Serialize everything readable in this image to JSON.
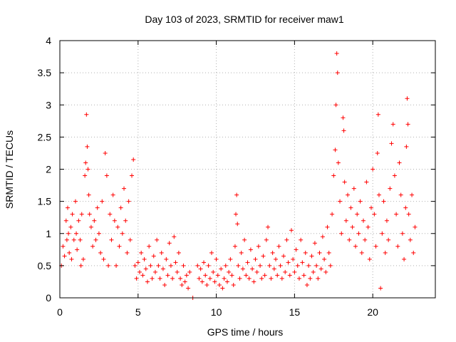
{
  "chart_data": {
    "type": "scatter",
    "title": "Day 103 of 2023, SRMTID for receiver maw1",
    "xlabel": "GPS time / hours",
    "ylabel": "SRMTID / TECUs",
    "xlim": [
      0,
      24
    ],
    "ylim": [
      0,
      4
    ],
    "xticks": [
      0,
      5,
      10,
      15,
      20
    ],
    "yticks": [
      0,
      0.5,
      1,
      1.5,
      2,
      2.5,
      3,
      3.5,
      4
    ],
    "xtick_labels": [
      "0",
      "5",
      "10",
      "15",
      "20"
    ],
    "ytick_labels": [
      "0",
      "0.5",
      "1",
      "1.5",
      "2",
      "2.5",
      "3",
      "3.5",
      "4"
    ],
    "grid": true,
    "marker": "plus",
    "series": [
      {
        "name": "maw1",
        "color": "#ff0000",
        "points": [
          [
            0.1,
            0.5
          ],
          [
            0.2,
            0.8
          ],
          [
            0.3,
            0.65
          ],
          [
            0.4,
            1.2
          ],
          [
            0.45,
            0.9
          ],
          [
            0.5,
            1.4
          ],
          [
            0.55,
            1.0
          ],
          [
            0.6,
            0.7
          ],
          [
            0.7,
            1.1
          ],
          [
            0.75,
            0.6
          ],
          [
            0.8,
            1.3
          ],
          [
            0.9,
            0.9
          ],
          [
            1.0,
            1.5
          ],
          [
            1.05,
            1.0
          ],
          [
            1.1,
            0.75
          ],
          [
            1.2,
            1.2
          ],
          [
            1.3,
            0.9
          ],
          [
            1.35,
            0.5
          ],
          [
            1.4,
            1.3
          ],
          [
            1.5,
            0.6
          ],
          [
            1.6,
            1.9
          ],
          [
            1.65,
            2.1
          ],
          [
            1.7,
            2.85
          ],
          [
            1.75,
            2.35
          ],
          [
            1.8,
            2.0
          ],
          [
            1.85,
            1.6
          ],
          [
            1.9,
            1.3
          ],
          [
            2.0,
            1.1
          ],
          [
            2.1,
            0.8
          ],
          [
            2.2,
            1.2
          ],
          [
            2.3,
            0.9
          ],
          [
            2.4,
            1.4
          ],
          [
            2.5,
            1.0
          ],
          [
            2.6,
            0.7
          ],
          [
            2.7,
            1.5
          ],
          [
            2.8,
            0.6
          ],
          [
            2.9,
            2.25
          ],
          [
            3.0,
            1.9
          ],
          [
            3.1,
            0.5
          ],
          [
            3.2,
            1.3
          ],
          [
            3.3,
            0.9
          ],
          [
            3.4,
            1.6
          ],
          [
            3.5,
            1.2
          ],
          [
            3.6,
            0.5
          ],
          [
            3.7,
            1.1
          ],
          [
            3.8,
            0.8
          ],
          [
            3.9,
            1.4
          ],
          [
            4.0,
            1.0
          ],
          [
            4.1,
            1.7
          ],
          [
            4.2,
            1.2
          ],
          [
            4.3,
            0.7
          ],
          [
            4.4,
            1.5
          ],
          [
            4.5,
            0.9
          ],
          [
            4.6,
            1.9
          ],
          [
            4.7,
            2.15
          ],
          [
            4.8,
            0.5
          ],
          [
            4.9,
            0.3
          ],
          [
            5.0,
            0.55
          ],
          [
            5.1,
            0.4
          ],
          [
            5.2,
            0.7
          ],
          [
            5.3,
            0.35
          ],
          [
            5.4,
            0.6
          ],
          [
            5.5,
            0.45
          ],
          [
            5.6,
            0.25
          ],
          [
            5.7,
            0.8
          ],
          [
            5.8,
            0.5
          ],
          [
            5.9,
            0.3
          ],
          [
            6.0,
            0.65
          ],
          [
            6.1,
            0.4
          ],
          [
            6.2,
            0.9
          ],
          [
            6.3,
            0.5
          ],
          [
            6.4,
            0.3
          ],
          [
            6.5,
            0.7
          ],
          [
            6.6,
            0.45
          ],
          [
            6.7,
            0.2
          ],
          [
            6.8,
            0.6
          ],
          [
            6.9,
            0.35
          ],
          [
            7.0,
            0.85
          ],
          [
            7.1,
            0.5
          ],
          [
            7.2,
            0.3
          ],
          [
            7.3,
            0.95
          ],
          [
            7.4,
            0.55
          ],
          [
            7.5,
            0.4
          ],
          [
            7.6,
            0.7
          ],
          [
            7.7,
            0.3
          ],
          [
            7.8,
            0.2
          ],
          [
            7.9,
            0.5
          ],
          [
            8.0,
            0.25
          ],
          [
            8.1,
            0.35
          ],
          [
            8.2,
            0.15
          ],
          [
            8.3,
            0.4
          ],
          [
            8.5,
            0.0
          ],
          [
            8.8,
            0.5
          ],
          [
            8.9,
            0.3
          ],
          [
            9.0,
            0.45
          ],
          [
            9.1,
            0.25
          ],
          [
            9.2,
            0.55
          ],
          [
            9.3,
            0.35
          ],
          [
            9.4,
            0.2
          ],
          [
            9.5,
            0.5
          ],
          [
            9.6,
            0.3
          ],
          [
            9.7,
            0.7
          ],
          [
            9.8,
            0.4
          ],
          [
            9.9,
            0.25
          ],
          [
            10.0,
            0.6
          ],
          [
            10.1,
            0.35
          ],
          [
            10.2,
            0.2
          ],
          [
            10.3,
            0.45
          ],
          [
            10.4,
            0.15
          ],
          [
            10.5,
            0.3
          ],
          [
            10.6,
            0.5
          ],
          [
            10.7,
            0.25
          ],
          [
            10.8,
            0.4
          ],
          [
            10.9,
            0.6
          ],
          [
            11.0,
            0.35
          ],
          [
            11.1,
            0.2
          ],
          [
            11.2,
            0.8
          ],
          [
            11.25,
            1.3
          ],
          [
            11.3,
            1.6
          ],
          [
            11.35,
            1.15
          ],
          [
            11.4,
            0.5
          ],
          [
            11.5,
            0.3
          ],
          [
            11.6,
            0.7
          ],
          [
            11.7,
            0.45
          ],
          [
            11.8,
            0.9
          ],
          [
            11.9,
            0.35
          ],
          [
            12.0,
            0.55
          ],
          [
            12.1,
            0.3
          ],
          [
            12.2,
            0.75
          ],
          [
            12.3,
            0.45
          ],
          [
            12.4,
            0.25
          ],
          [
            12.5,
            0.6
          ],
          [
            12.6,
            0.4
          ],
          [
            12.7,
            0.8
          ],
          [
            12.8,
            0.5
          ],
          [
            12.9,
            0.3
          ],
          [
            13.0,
            0.65
          ],
          [
            13.1,
            0.35
          ],
          [
            13.2,
            0.9
          ],
          [
            13.3,
            1.1
          ],
          [
            13.4,
            0.5
          ],
          [
            13.5,
            0.3
          ],
          [
            13.6,
            0.7
          ],
          [
            13.7,
            0.45
          ],
          [
            13.8,
            0.6
          ],
          [
            13.9,
            0.35
          ],
          [
            14.0,
            0.8
          ],
          [
            14.1,
            0.5
          ],
          [
            14.2,
            0.3
          ],
          [
            14.3,
            0.65
          ],
          [
            14.4,
            0.4
          ],
          [
            14.5,
            0.9
          ],
          [
            14.6,
            0.55
          ],
          [
            14.7,
            0.35
          ],
          [
            14.8,
            1.05
          ],
          [
            14.9,
            0.6
          ],
          [
            15.0,
            0.4
          ],
          [
            15.1,
            0.75
          ],
          [
            15.2,
            0.5
          ],
          [
            15.3,
            0.3
          ],
          [
            15.4,
            0.9
          ],
          [
            15.5,
            0.55
          ],
          [
            15.6,
            0.35
          ],
          [
            15.7,
            0.7
          ],
          [
            15.8,
            0.2
          ],
          [
            15.9,
            0.5
          ],
          [
            16.0,
            0.3
          ],
          [
            16.1,
            0.65
          ],
          [
            16.2,
            0.4
          ],
          [
            16.3,
            0.85
          ],
          [
            16.4,
            0.5
          ],
          [
            16.5,
            0.3
          ],
          [
            16.6,
            0.7
          ],
          [
            16.7,
            0.45
          ],
          [
            16.8,
            0.95
          ],
          [
            16.9,
            0.6
          ],
          [
            17.0,
            0.4
          ],
          [
            17.1,
            1.1
          ],
          [
            17.2,
            0.7
          ],
          [
            17.3,
            0.5
          ],
          [
            17.4,
            1.3
          ],
          [
            17.5,
            1.9
          ],
          [
            17.6,
            2.3
          ],
          [
            17.65,
            3.0
          ],
          [
            17.7,
            3.8
          ],
          [
            17.75,
            3.5
          ],
          [
            17.8,
            2.1
          ],
          [
            17.9,
            1.5
          ],
          [
            18.0,
            1.0
          ],
          [
            18.1,
            2.8
          ],
          [
            18.15,
            2.6
          ],
          [
            18.2,
            1.8
          ],
          [
            18.3,
            1.2
          ],
          [
            18.4,
            1.6
          ],
          [
            18.5,
            0.9
          ],
          [
            18.6,
            1.4
          ],
          [
            18.7,
            1.1
          ],
          [
            18.8,
            1.7
          ],
          [
            18.9,
            0.8
          ],
          [
            19.0,
            1.3
          ],
          [
            19.1,
            1.0
          ],
          [
            19.2,
            1.5
          ],
          [
            19.3,
            0.7
          ],
          [
            19.4,
            1.2
          ],
          [
            19.5,
            0.9
          ],
          [
            19.6,
            1.8
          ],
          [
            19.7,
            1.1
          ],
          [
            19.8,
            0.6
          ],
          [
            19.9,
            1.4
          ],
          [
            20.0,
            2.0
          ],
          [
            20.1,
            1.3
          ],
          [
            20.2,
            0.8
          ],
          [
            20.3,
            2.25
          ],
          [
            20.35,
            2.85
          ],
          [
            20.4,
            1.6
          ],
          [
            20.5,
            0.15
          ],
          [
            20.6,
            1.0
          ],
          [
            20.7,
            1.5
          ],
          [
            20.8,
            0.7
          ],
          [
            20.9,
            1.2
          ],
          [
            21.0,
            0.9
          ],
          [
            21.1,
            1.7
          ],
          [
            21.2,
            2.4
          ],
          [
            21.3,
            2.7
          ],
          [
            21.4,
            1.9
          ],
          [
            21.5,
            1.3
          ],
          [
            21.6,
            0.8
          ],
          [
            21.7,
            2.1
          ],
          [
            21.8,
            1.6
          ],
          [
            21.9,
            1.0
          ],
          [
            22.0,
            0.6
          ],
          [
            22.1,
            1.4
          ],
          [
            22.15,
            2.35
          ],
          [
            22.2,
            3.1
          ],
          [
            22.25,
            2.7
          ],
          [
            22.3,
            1.3
          ],
          [
            22.4,
            0.9
          ],
          [
            22.5,
            1.6
          ],
          [
            22.6,
            0.7
          ],
          [
            22.7,
            1.1
          ]
        ]
      }
    ]
  }
}
